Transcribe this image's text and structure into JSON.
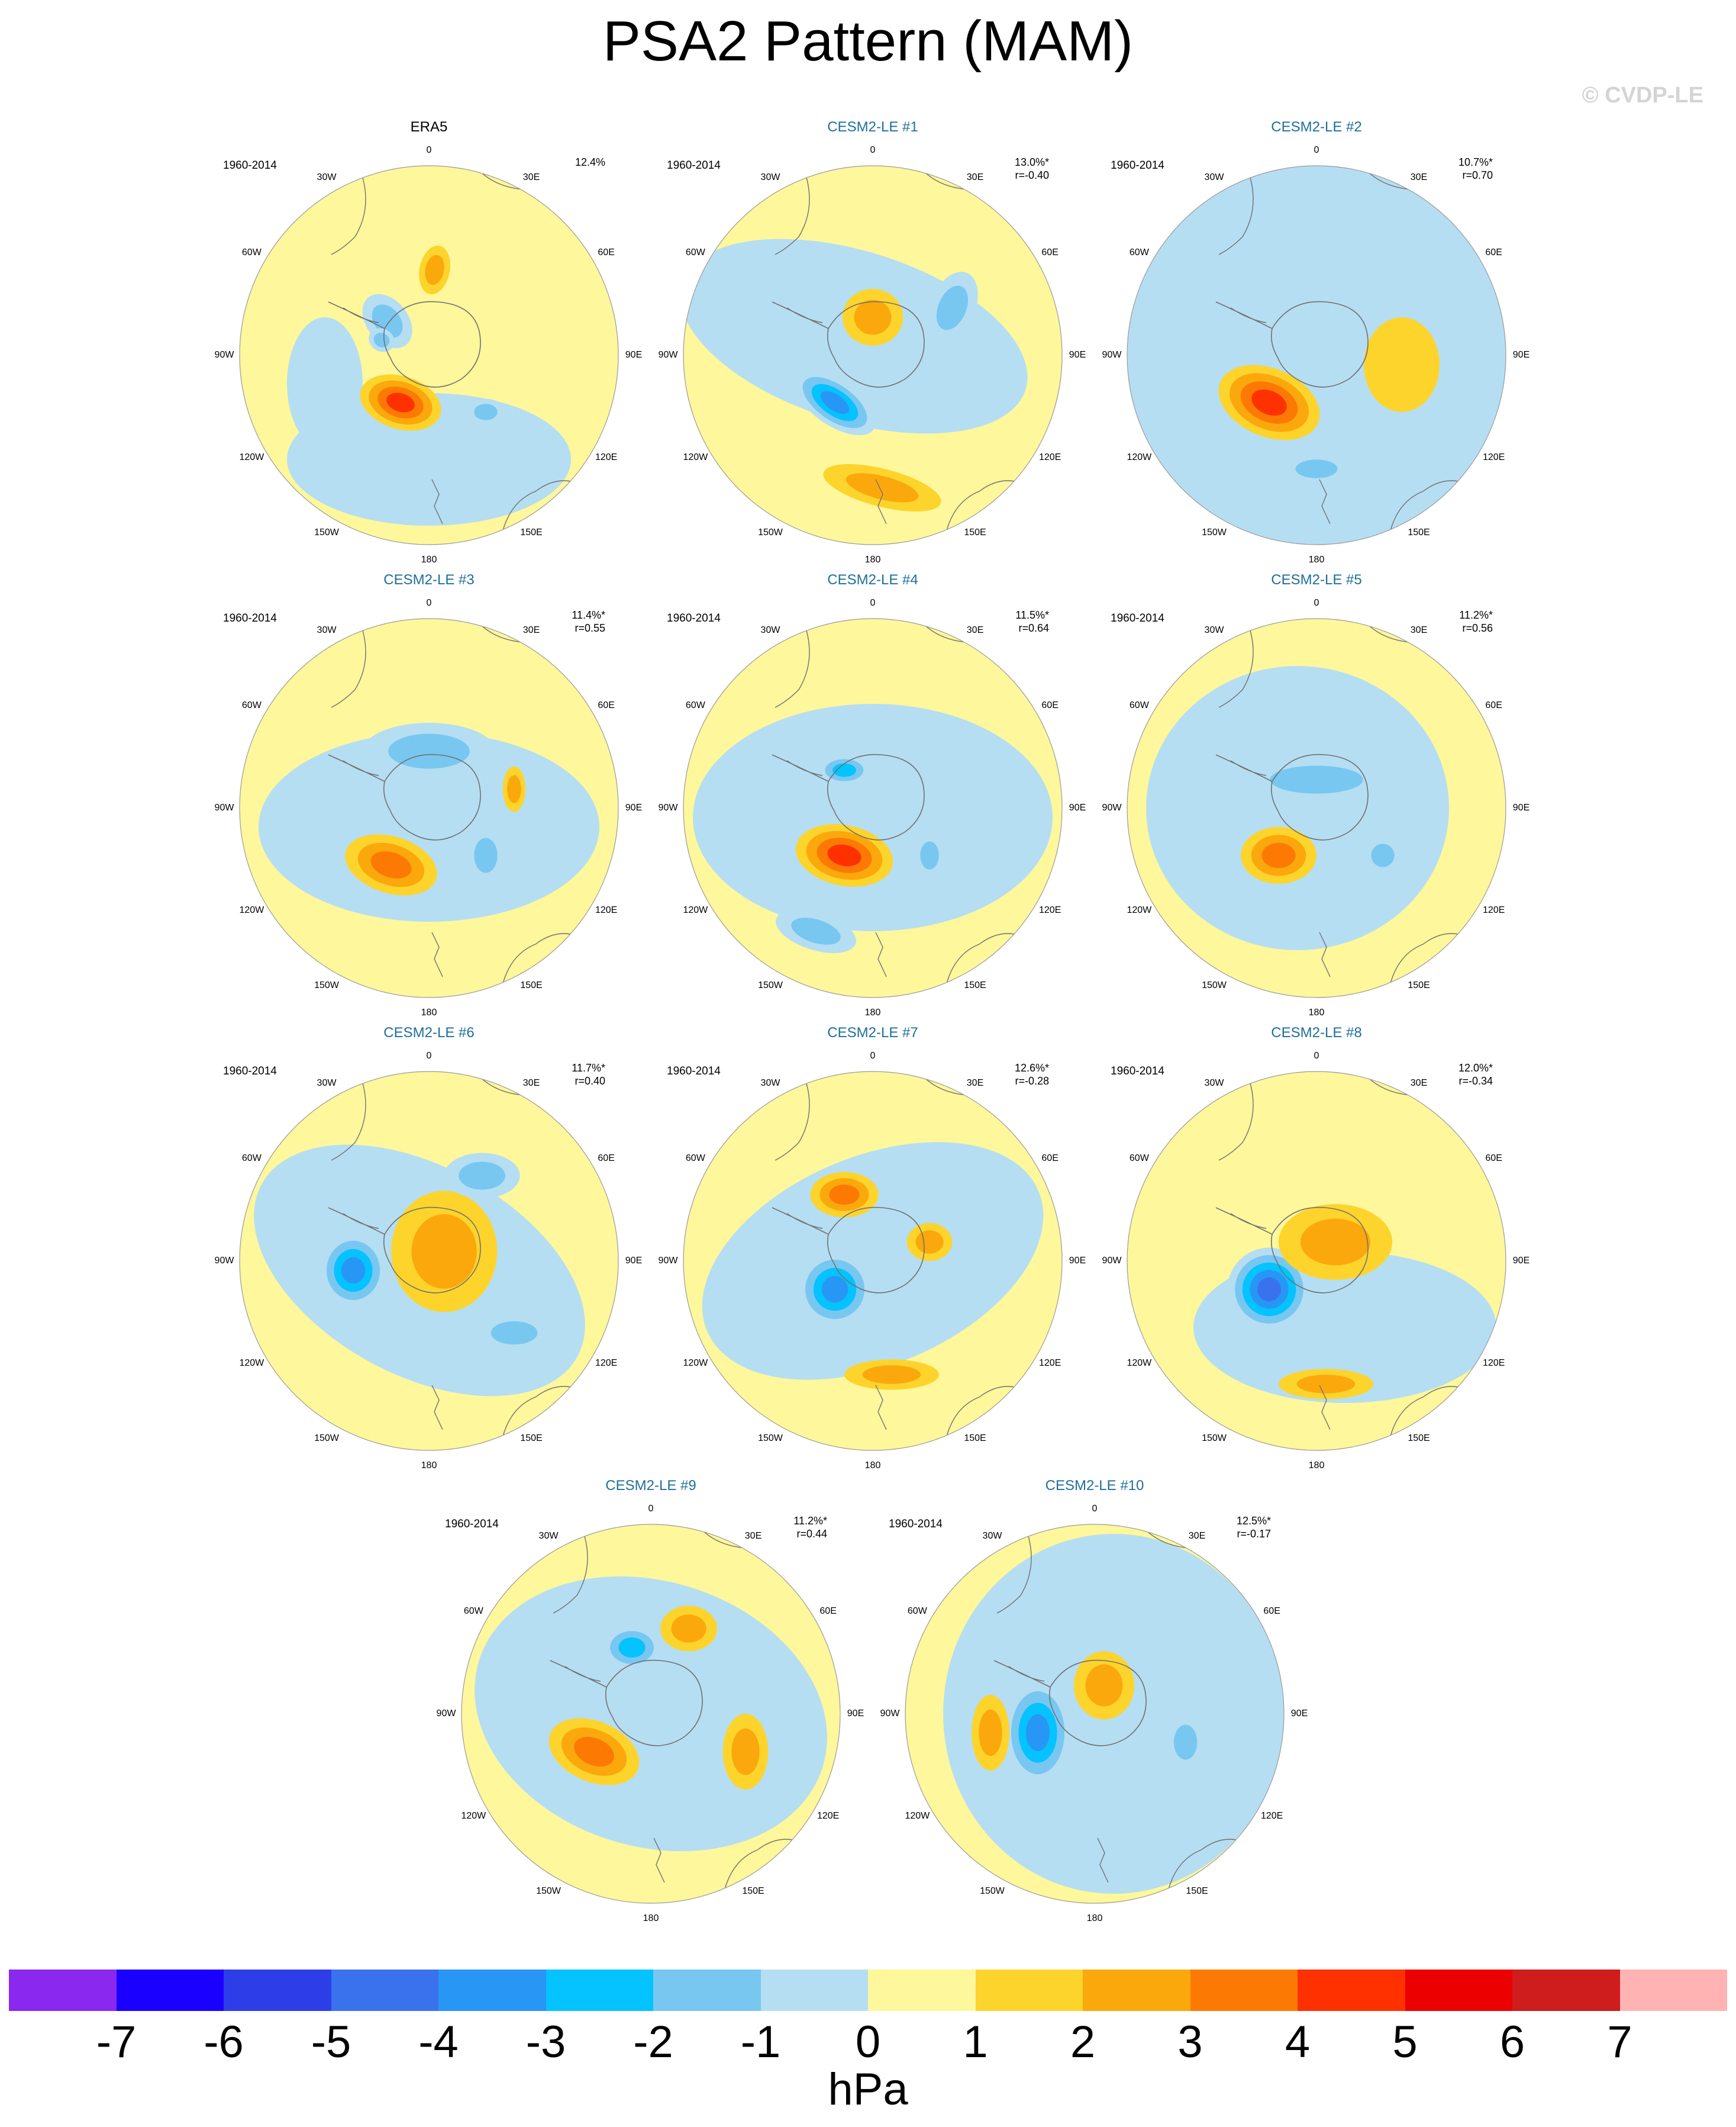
{
  "title": "PSA2 Pattern (MAM)",
  "watermark": "© CVDP-LE",
  "colors": {
    "model_title": "#1f6f9a",
    "land_outline": "#707070"
  },
  "panels": [
    {
      "title": "ERA5",
      "kind": "obs",
      "period": "1960-2014",
      "pct": "12.4%",
      "r": "",
      "blobs": [
        [
          -0.22,
          -0.18,
          0.16,
          0.11,
          0.9,
          -2
        ],
        [
          -0.25,
          -0.08,
          0.07,
          0.06,
          0.5,
          -2
        ],
        [
          0.03,
          -0.45,
          0.08,
          0.13,
          0.2,
          2
        ],
        [
          -0.15,
          0.25,
          0.22,
          0.14,
          0.3,
          4
        ],
        [
          0.3,
          0.3,
          0.1,
          0.07,
          0,
          -2
        ]
      ],
      "base": [
        [
          0.0,
          0.55,
          0.75,
          0.35,
          0,
          -1
        ],
        [
          -0.55,
          0.15,
          0.2,
          0.35,
          0,
          -1
        ]
      ]
    },
    {
      "title": "CESM2-LE #1",
      "kind": "model",
      "period": "1960-2014",
      "pct": "13.0%*",
      "r": "r=-0.40",
      "blobs": [
        [
          -0.2,
          0.25,
          0.25,
          0.12,
          0.6,
          -4
        ],
        [
          0.0,
          -0.2,
          0.16,
          0.15,
          0,
          2
        ],
        [
          0.42,
          -0.25,
          0.12,
          0.2,
          0.4,
          -2
        ],
        [
          0.05,
          0.7,
          0.32,
          0.1,
          0.25,
          2
        ]
      ],
      "base": [
        [
          -0.1,
          -0.1,
          0.95,
          0.45,
          0.3,
          -1
        ]
      ]
    },
    {
      "title": "CESM2-LE #2",
      "kind": "model",
      "period": "1960-2014",
      "pct": "10.7%*",
      "r": "r=0.70",
      "blobs": [
        [
          -0.25,
          0.25,
          0.28,
          0.18,
          0.4,
          4
        ],
        [
          0.0,
          0.6,
          0.18,
          0.08,
          0,
          -2
        ],
        [
          0.45,
          0.05,
          0.2,
          0.25,
          0,
          1
        ]
      ],
      "base": [
        [
          0,
          0,
          1.0,
          1.0,
          0,
          -1
        ]
      ]
    },
    {
      "title": "CESM2-LE #3",
      "kind": "model",
      "period": "1960-2014",
      "pct": "11.4%*",
      "r": "r=0.55",
      "blobs": [
        [
          -0.2,
          0.3,
          0.25,
          0.15,
          0.3,
          3
        ],
        [
          0.0,
          -0.3,
          0.35,
          0.15,
          0,
          -2
        ],
        [
          0.3,
          0.25,
          0.1,
          0.15,
          0,
          -2
        ],
        [
          0.45,
          -0.1,
          0.06,
          0.12,
          0,
          2
        ]
      ],
      "base": [
        [
          0,
          0.1,
          0.9,
          0.5,
          0,
          -1
        ]
      ]
    },
    {
      "title": "CESM2-LE #4",
      "kind": "model",
      "period": "1960-2014",
      "pct": "11.5%*",
      "r": "r=0.64",
      "blobs": [
        [
          -0.15,
          0.25,
          0.26,
          0.16,
          0.2,
          4
        ],
        [
          -0.15,
          -0.2,
          0.14,
          0.08,
          0,
          -3
        ],
        [
          -0.3,
          0.65,
          0.22,
          0.1,
          0.3,
          -2
        ],
        [
          0.3,
          0.25,
          0.08,
          0.12,
          0,
          -2
        ]
      ],
      "base": [
        [
          0,
          0.05,
          0.95,
          0.6,
          0,
          -1
        ]
      ]
    },
    {
      "title": "CESM2-LE #5",
      "kind": "model",
      "period": "1960-2014",
      "pct": "11.2%*",
      "r": "r=0.56",
      "blobs": [
        [
          -0.2,
          0.25,
          0.2,
          0.15,
          0,
          3
        ],
        [
          0.0,
          -0.15,
          0.4,
          0.12,
          0,
          -2
        ],
        [
          0.35,
          0.25,
          0.1,
          0.1,
          0,
          -2
        ]
      ],
      "base": [
        [
          -0.1,
          0.0,
          0.8,
          0.75,
          0,
          -1
        ]
      ]
    },
    {
      "title": "CESM2-LE #6",
      "kind": "model",
      "period": "1960-2014",
      "pct": "11.7%*",
      "r": "r=0.40",
      "blobs": [
        [
          -0.4,
          0.05,
          0.18,
          0.2,
          0,
          -4
        ],
        [
          0.08,
          -0.05,
          0.28,
          0.32,
          0,
          2
        ],
        [
          0.28,
          -0.45,
          0.2,
          0.12,
          0,
          -2
        ],
        [
          0.45,
          0.38,
          0.2,
          0.1,
          0,
          -2
        ]
      ],
      "base": [
        [
          -0.05,
          0.05,
          0.95,
          0.55,
          0.5,
          -1
        ]
      ]
    },
    {
      "title": "CESM2-LE #7",
      "kind": "model",
      "period": "1960-2014",
      "pct": "12.6%*",
      "r": "r=-0.28",
      "blobs": [
        [
          -0.2,
          0.15,
          0.2,
          0.2,
          0,
          -4
        ],
        [
          -0.15,
          -0.35,
          0.18,
          0.12,
          0,
          3
        ],
        [
          0.1,
          0.6,
          0.25,
          0.08,
          0,
          2
        ],
        [
          0.3,
          -0.1,
          0.12,
          0.1,
          0,
          2
        ]
      ],
      "base": [
        [
          0,
          0.0,
          0.95,
          0.55,
          -0.4,
          -1
        ]
      ]
    },
    {
      "title": "CESM2-LE #8",
      "kind": "model",
      "period": "1960-2014",
      "pct": "12.0%*",
      "r": "r=-0.34",
      "blobs": [
        [
          -0.25,
          0.15,
          0.22,
          0.22,
          0.3,
          -5
        ],
        [
          0.1,
          -0.1,
          0.3,
          0.2,
          0,
          2
        ],
        [
          0.05,
          0.65,
          0.25,
          0.08,
          0,
          2
        ]
      ],
      "base": [
        [
          0.15,
          0.35,
          0.8,
          0.4,
          0,
          -1
        ]
      ]
    },
    {
      "title": "CESM2-LE #9",
      "kind": "model",
      "period": "1960-2014",
      "pct": "11.2%*",
      "r": "r=0.44",
      "blobs": [
        [
          -0.3,
          0.2,
          0.25,
          0.16,
          0.4,
          3
        ],
        [
          -0.1,
          -0.35,
          0.16,
          0.12,
          0,
          -3
        ],
        [
          0.2,
          -0.45,
          0.15,
          0.12,
          0,
          2
        ],
        [
          0.5,
          0.2,
          0.12,
          0.2,
          0,
          2
        ]
      ],
      "base": [
        [
          0.0,
          0.0,
          0.95,
          0.7,
          0.3,
          -1
        ]
      ]
    },
    {
      "title": "CESM2-LE #10",
      "kind": "model",
      "period": "1960-2014",
      "pct": "12.5%*",
      "r": "r=-0.17",
      "blobs": [
        [
          -0.3,
          0.1,
          0.18,
          0.28,
          0,
          -4
        ],
        [
          0.05,
          -0.15,
          0.16,
          0.18,
          0,
          2
        ],
        [
          0.48,
          0.15,
          0.1,
          0.15,
          0,
          -2
        ],
        [
          -0.55,
          0.1,
          0.1,
          0.2,
          0,
          2
        ]
      ],
      "base": [
        [
          0.1,
          0.0,
          0.9,
          0.95,
          0,
          -1
        ]
      ]
    }
  ],
  "lon_labels": [
    "0",
    "30E",
    "60E",
    "90E",
    "120E",
    "150E",
    "180",
    "150W",
    "120W",
    "90W",
    "60W",
    "30W"
  ],
  "colorbar": {
    "unit": "hPa",
    "ticks": [
      "-7",
      "-6",
      "-5",
      "-4",
      "-3",
      "-2",
      "-1",
      "0",
      "1",
      "2",
      "3",
      "4",
      "5",
      "6",
      "7"
    ],
    "colors": [
      "#8a28f0",
      "#1a00ff",
      "#2d3ee9",
      "#3a72ee",
      "#2896f5",
      "#04c3ff",
      "#78c7f1",
      "#b5def3",
      "#fef79b",
      "#fdd42c",
      "#fba80d",
      "#fc7a04",
      "#ff3100",
      "#ec0000",
      "#cf1c1c",
      "#ffb3b3"
    ]
  }
}
